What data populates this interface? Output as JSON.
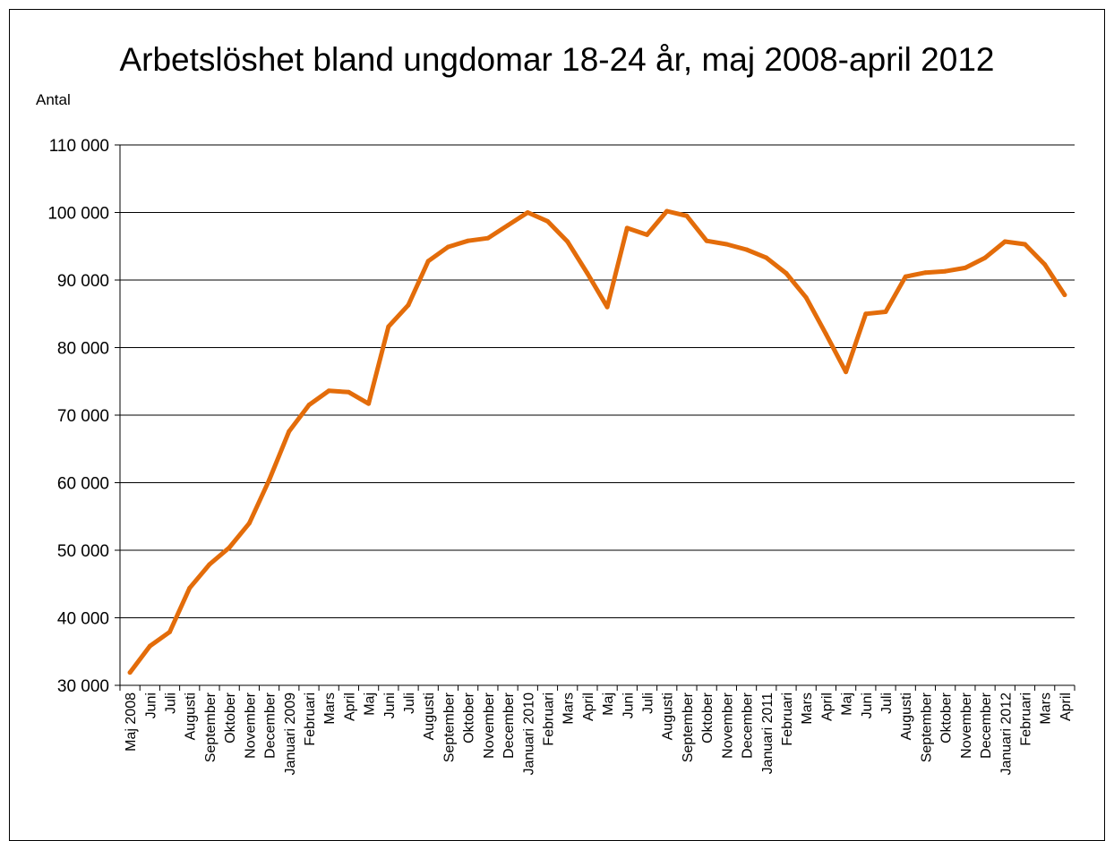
{
  "chart_data": {
    "type": "line",
    "title": "Arbetslöshet bland ungdomar 18-24 år, maj 2008-april 2012",
    "ylabel": "Antal",
    "xlabel": "",
    "ylim": [
      30000,
      110000
    ],
    "yticks": [
      30000,
      40000,
      50000,
      60000,
      70000,
      80000,
      90000,
      100000,
      110000
    ],
    "ytick_labels": [
      "30 000",
      "40 000",
      "50 000",
      "60 000",
      "70 000",
      "80 000",
      "90 000",
      "100 000",
      "110 000"
    ],
    "grid": "horizontal",
    "line_color": "#E36C0A",
    "categories": [
      "Maj 2008",
      "Juni",
      "Juli",
      "Augusti",
      "September",
      "Oktober",
      "November",
      "December",
      "Januari 2009",
      "Februari",
      "Mars",
      "April",
      "Maj",
      "Juni",
      "Juli",
      "Augusti",
      "September",
      "Oktober",
      "November",
      "December",
      "Januari 2010",
      "Februari",
      "Mars",
      "April",
      "Maj",
      "Juni",
      "Juli",
      "Augusti",
      "September",
      "Oktober",
      "November",
      "December",
      "Januari 2011",
      "Februari",
      "Mars",
      "April",
      "Maj",
      "Juni",
      "Juli",
      "Augusti",
      "September",
      "Oktober",
      "November",
      "December",
      "Januari 2012",
      "Februari",
      "Mars",
      "April"
    ],
    "series": [
      {
        "values": [
          31900,
          35800,
          37900,
          44400,
          47900,
          50400,
          54000,
          60400,
          67600,
          71500,
          73600,
          73400,
          71700,
          83100,
          86300,
          92800,
          94900,
          95800,
          96200,
          98100,
          100000,
          98700,
          95700,
          91000,
          86000,
          97700,
          96700,
          100200,
          99500,
          95800,
          95300,
          94500,
          93300,
          91000,
          87400,
          82000,
          76400,
          85000,
          85300,
          90500,
          91100,
          91300,
          91800,
          93300,
          95700,
          95300,
          92300,
          87800
        ]
      }
    ]
  }
}
